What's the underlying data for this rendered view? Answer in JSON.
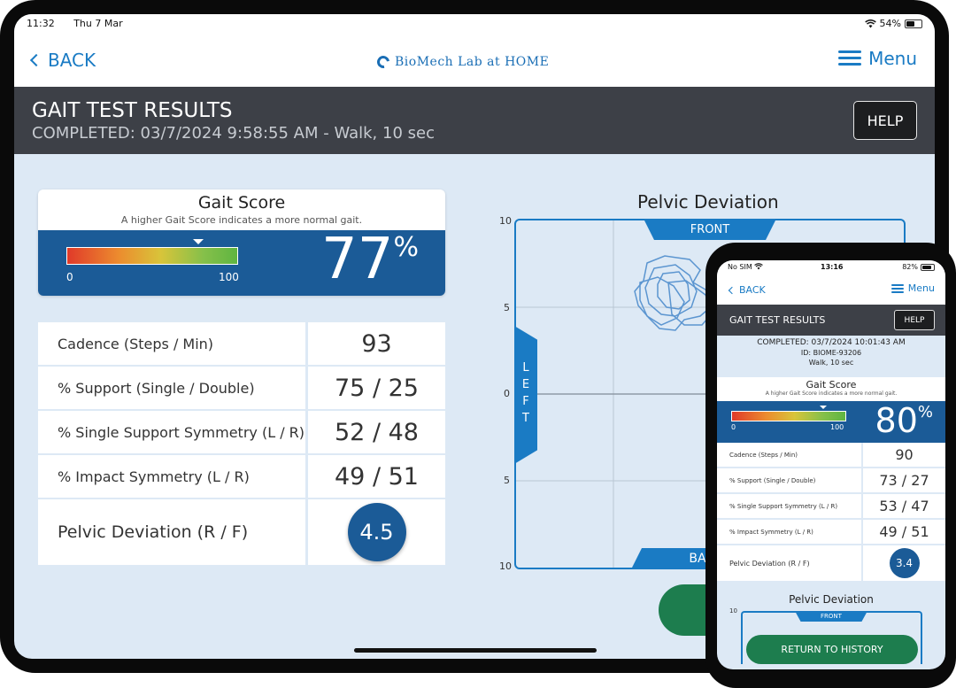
{
  "tablet": {
    "status": {
      "time": "11:32",
      "date": "Thu 7 Mar",
      "battery": "54%",
      "battery_fill": 0.54
    },
    "nav": {
      "back_label": "BACK",
      "logo_text": "BioMech Lab at HOME",
      "menu_label": "Menu"
    },
    "header": {
      "title": "GAIT TEST RESULTS",
      "subtitle": "COMPLETED: 03/7/2024 9:58:55 AM - Walk, 10 sec",
      "help_label": "HELP"
    },
    "gait_score": {
      "title": "Gait Score",
      "description": "A higher Gait Score indicates a more normal gait.",
      "min": "0",
      "max": "100",
      "value": "77",
      "value_fraction": 0.77,
      "unit": "%"
    },
    "metrics": [
      {
        "label": "Cadence (Steps / Min)",
        "value": "93"
      },
      {
        "label": "% Support (Single / Double)",
        "value": "75 / 25"
      },
      {
        "label": "% Single Support Symmetry (L / R)",
        "value": "52 / 48"
      },
      {
        "label": "% Impact Symmetry (L / R)",
        "value": "49 / 51"
      },
      {
        "label": "Pelvic Deviation (R / F)",
        "value": "4.5"
      }
    ],
    "pelvic": {
      "title": "Pelvic Deviation",
      "front_label": "FRONT",
      "back_label": "BA",
      "left_label": "LEFT",
      "y_ticks": [
        "10",
        "5",
        "0",
        "5",
        "10"
      ]
    }
  },
  "phone": {
    "status": {
      "carrier": "No SIM",
      "time": "13:16",
      "battery": "82%",
      "battery_fill": 0.82
    },
    "nav": {
      "back_label": "BACK",
      "menu_label": "Menu"
    },
    "header": {
      "title": "GAIT TEST RESULTS",
      "help_label": "HELP"
    },
    "info": {
      "completed": "COMPLETED: 03/7/2024 10:01:43 AM",
      "id": "ID: BIOME-93206",
      "test": "Walk, 10 sec"
    },
    "gait_score": {
      "title": "Gait Score",
      "description": "A higher Gait Score indicates a more normal gait.",
      "min": "0",
      "max": "100",
      "value": "80",
      "value_fraction": 0.8,
      "unit": "%"
    },
    "metrics": [
      {
        "label": "Cadence (Steps / Min)",
        "value": "90"
      },
      {
        "label": "% Support (Single / Double)",
        "value": "73 / 27"
      },
      {
        "label": "% Single Support Symmetry (L / R)",
        "value": "53 / 47"
      },
      {
        "label": "% Impact Symmetry (L / R)",
        "value": "49 / 51"
      },
      {
        "label": "Pelvic Deviation (R / F)",
        "value": "3.4"
      }
    ],
    "pelvic": {
      "title": "Pelvic Deviation",
      "front_label": "FRONT",
      "top_tick": "10"
    },
    "return_label": "RETURN TO HISTORY"
  },
  "colors": {
    "brand_blue": "#1b5b97",
    "accent_blue": "#1a7bc4",
    "header_gray": "#3d4047",
    "green": "#1d7d4e",
    "background": "#dde9f5"
  }
}
